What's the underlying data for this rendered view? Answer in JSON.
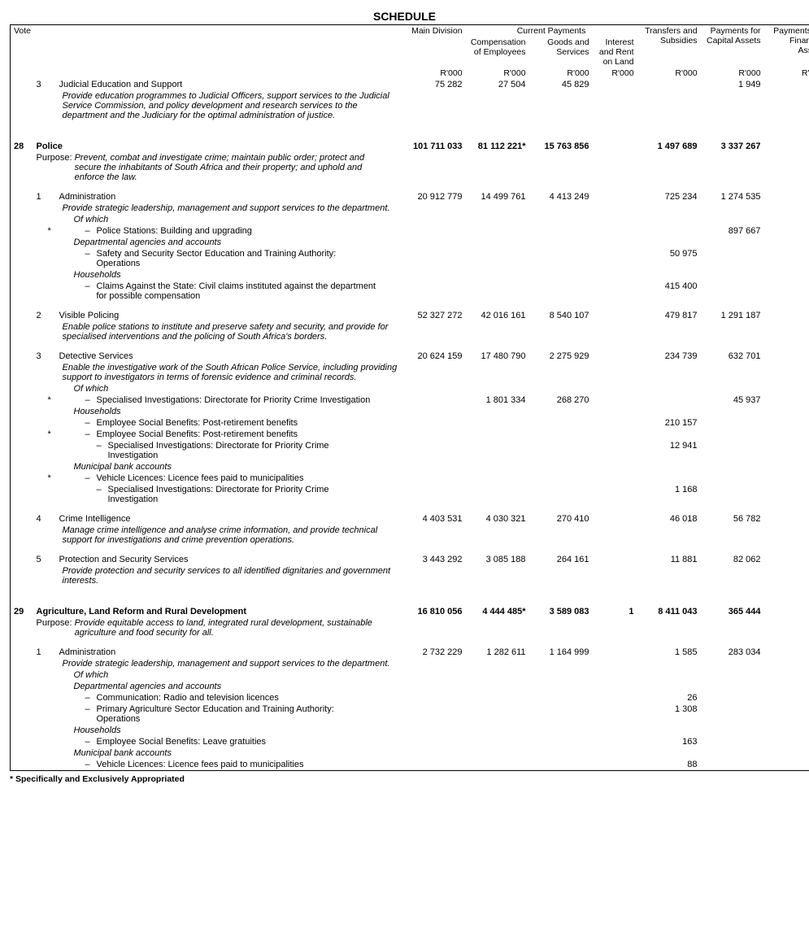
{
  "title": "SCHEDULE",
  "headers": {
    "vote": "Vote",
    "main_division": "Main Division",
    "current_payments": "Current Payments",
    "compensation": "Compensation of Employees",
    "goods": "Goods and Services",
    "interest": "Interest and Rent on Land",
    "transfers": "Transfers and Subsidies",
    "capital": "Payments for Capital Assets",
    "financial": "Payments for Financial Assets",
    "unit": "R'000"
  },
  "footnote": "* Specifically and Exclusively Appropriated",
  "rows": [
    {
      "type": "prog",
      "num": "3",
      "title": "Judicial Education and Support",
      "v": {
        "md": "75 282",
        "ce": "27 504",
        "gs": "45 829",
        "ca": "1 949"
      }
    },
    {
      "type": "desc",
      "text": "Provide education programmes to Judicial Officers, support services to the Judicial Service Commission, and policy development and research services to the department and the Judiciary for the optimal administration of justice."
    },
    {
      "type": "spacer"
    },
    {
      "type": "vote",
      "vote": "28",
      "title": "Police",
      "v": {
        "md": "101 711 033",
        "ce": "81 112 221*",
        "gs": "15 763 856",
        "ts": "1 497 689",
        "ca": "3 337 267"
      }
    },
    {
      "type": "purpose",
      "label": "Purpose:",
      "text": "Prevent, combat and investigate crime; maintain public order; protect and secure the inhabitants of South Africa and their property; and uphold and enforce the law."
    },
    {
      "type": "gap"
    },
    {
      "type": "prog",
      "num": "1",
      "title": "Administration",
      "v": {
        "md": "20 912 779",
        "ce": "14 499 761",
        "gs": "4 413 249",
        "ts": "725 234",
        "ca": "1 274 535"
      }
    },
    {
      "type": "desc",
      "text": "Provide strategic leadership, management and support services to the department."
    },
    {
      "type": "sub",
      "level": 1,
      "ital": true,
      "text": "Of which"
    },
    {
      "type": "sub",
      "level": 2,
      "star": true,
      "dash": true,
      "text": "Police Stations: Building and upgrading",
      "v": {
        "ca": "897 667"
      }
    },
    {
      "type": "sub",
      "level": 1,
      "ital": true,
      "text": "Departmental agencies and accounts"
    },
    {
      "type": "sub",
      "level": 2,
      "dash": true,
      "text": "Safety and Security Sector Education and Training Authority: Operations",
      "v": {
        "ts": "50 975"
      }
    },
    {
      "type": "sub",
      "level": 1,
      "ital": true,
      "text": "Households"
    },
    {
      "type": "sub",
      "level": 2,
      "dash": true,
      "text": "Claims Against the State: Civil claims instituted against the department for possible compensation",
      "v": {
        "ts": "415 400"
      }
    },
    {
      "type": "gap"
    },
    {
      "type": "prog",
      "num": "2",
      "title": "Visible Policing",
      "v": {
        "md": "52 327 272",
        "ce": "42 016 161",
        "gs": "8 540 107",
        "ts": "479 817",
        "ca": "1 291 187"
      }
    },
    {
      "type": "desc",
      "text": "Enable police stations to institute and preserve safety and security, and provide for specialised interventions and the policing of South Africa's borders."
    },
    {
      "type": "gap"
    },
    {
      "type": "prog",
      "num": "3",
      "title": "Detective Services",
      "v": {
        "md": "20 624 159",
        "ce": "17 480 790",
        "gs": "2 275 929",
        "ts": "234 739",
        "ca": "632 701"
      }
    },
    {
      "type": "desc",
      "text": "Enable the investigative work of the South African Police Service, including providing support to investigators in terms of forensic evidence and criminal records."
    },
    {
      "type": "sub",
      "level": 1,
      "ital": true,
      "text": "Of which"
    },
    {
      "type": "sub",
      "level": 2,
      "star": true,
      "dash": true,
      "text": "Specialised Investigations: Directorate for Priority Crime Investigation",
      "v": {
        "ce": "1 801 334",
        "gs": "268 270",
        "ca": "45 937"
      }
    },
    {
      "type": "sub",
      "level": 1,
      "ital": true,
      "text": "Households"
    },
    {
      "type": "sub",
      "level": 2,
      "dash": true,
      "text": "Employee Social Benefits: Post-retirement benefits",
      "v": {
        "ts": "210 157"
      }
    },
    {
      "type": "sub",
      "level": 2,
      "star": true,
      "dash": true,
      "text": "Employee Social Benefits: Post-retirement benefits"
    },
    {
      "type": "sub",
      "level": 3,
      "dash": true,
      "text": "Specialised Investigations: Directorate for Priority Crime Investigation",
      "v": {
        "ts": "12 941"
      }
    },
    {
      "type": "sub",
      "level": 1,
      "ital": true,
      "text": "Municipal bank accounts"
    },
    {
      "type": "sub",
      "level": 2,
      "star": true,
      "dash": true,
      "text": "Vehicle Licences: Licence fees paid to municipalities"
    },
    {
      "type": "sub",
      "level": 3,
      "dash": true,
      "text": "Specialised Investigations: Directorate for Priority Crime Investigation",
      "v": {
        "ts": "1 168"
      }
    },
    {
      "type": "gap"
    },
    {
      "type": "prog",
      "num": "4",
      "title": "Crime Intelligence",
      "v": {
        "md": "4 403 531",
        "ce": "4 030 321",
        "gs": "270 410",
        "ts": "46 018",
        "ca": "56 782"
      }
    },
    {
      "type": "desc",
      "text": "Manage crime intelligence and analyse crime information, and provide technical support for investigations and crime prevention operations."
    },
    {
      "type": "gap"
    },
    {
      "type": "prog",
      "num": "5",
      "title": "Protection and Security Services",
      "v": {
        "md": "3 443 292",
        "ce": "3 085 188",
        "gs": "264 161",
        "ts": "11 881",
        "ca": "82 062"
      }
    },
    {
      "type": "desc",
      "text": "Provide protection and security services to all identified dignitaries and government interests."
    },
    {
      "type": "spacer"
    },
    {
      "type": "vote",
      "vote": "29",
      "title": "Agriculture, Land Reform and Rural Development",
      "v": {
        "md": "16 810 056",
        "ce": "4 444 485*",
        "gs": "3 589 083",
        "ir": "1",
        "ts": "8 411 043",
        "ca": "365 444"
      }
    },
    {
      "type": "purpose",
      "label": "Purpose:",
      "text": "Provide equitable access to land, integrated rural development, sustainable agriculture and food security for all."
    },
    {
      "type": "gap"
    },
    {
      "type": "prog",
      "num": "1",
      "title": "Administration",
      "v": {
        "md": "2 732 229",
        "ce": "1 282 611",
        "gs": "1 164 999",
        "ts": "1 585",
        "ca": "283 034"
      }
    },
    {
      "type": "desc",
      "text": "Provide strategic leadership, management and support services to the department."
    },
    {
      "type": "sub",
      "level": 1,
      "ital": true,
      "text": "Of which"
    },
    {
      "type": "sub",
      "level": 1,
      "ital": true,
      "text": "Departmental agencies and accounts"
    },
    {
      "type": "sub",
      "level": 2,
      "dash": true,
      "text": "Communication: Radio and television licences",
      "v": {
        "ts": "26"
      }
    },
    {
      "type": "sub",
      "level": 2,
      "dash": true,
      "text": "Primary Agriculture Sector Education and Training Authority: Operations",
      "v": {
        "ts": "1 308"
      }
    },
    {
      "type": "sub",
      "level": 1,
      "ital": true,
      "text": "Households"
    },
    {
      "type": "sub",
      "level": 2,
      "dash": true,
      "text": "Employee Social Benefits: Leave gratuities",
      "v": {
        "ts": "163"
      }
    },
    {
      "type": "sub",
      "level": 1,
      "ital": true,
      "text": "Municipal bank accounts"
    },
    {
      "type": "sub",
      "level": 2,
      "dash": true,
      "text": "Vehicle Licences: Licence fees paid to municipalities",
      "v": {
        "ts": "88"
      }
    }
  ]
}
